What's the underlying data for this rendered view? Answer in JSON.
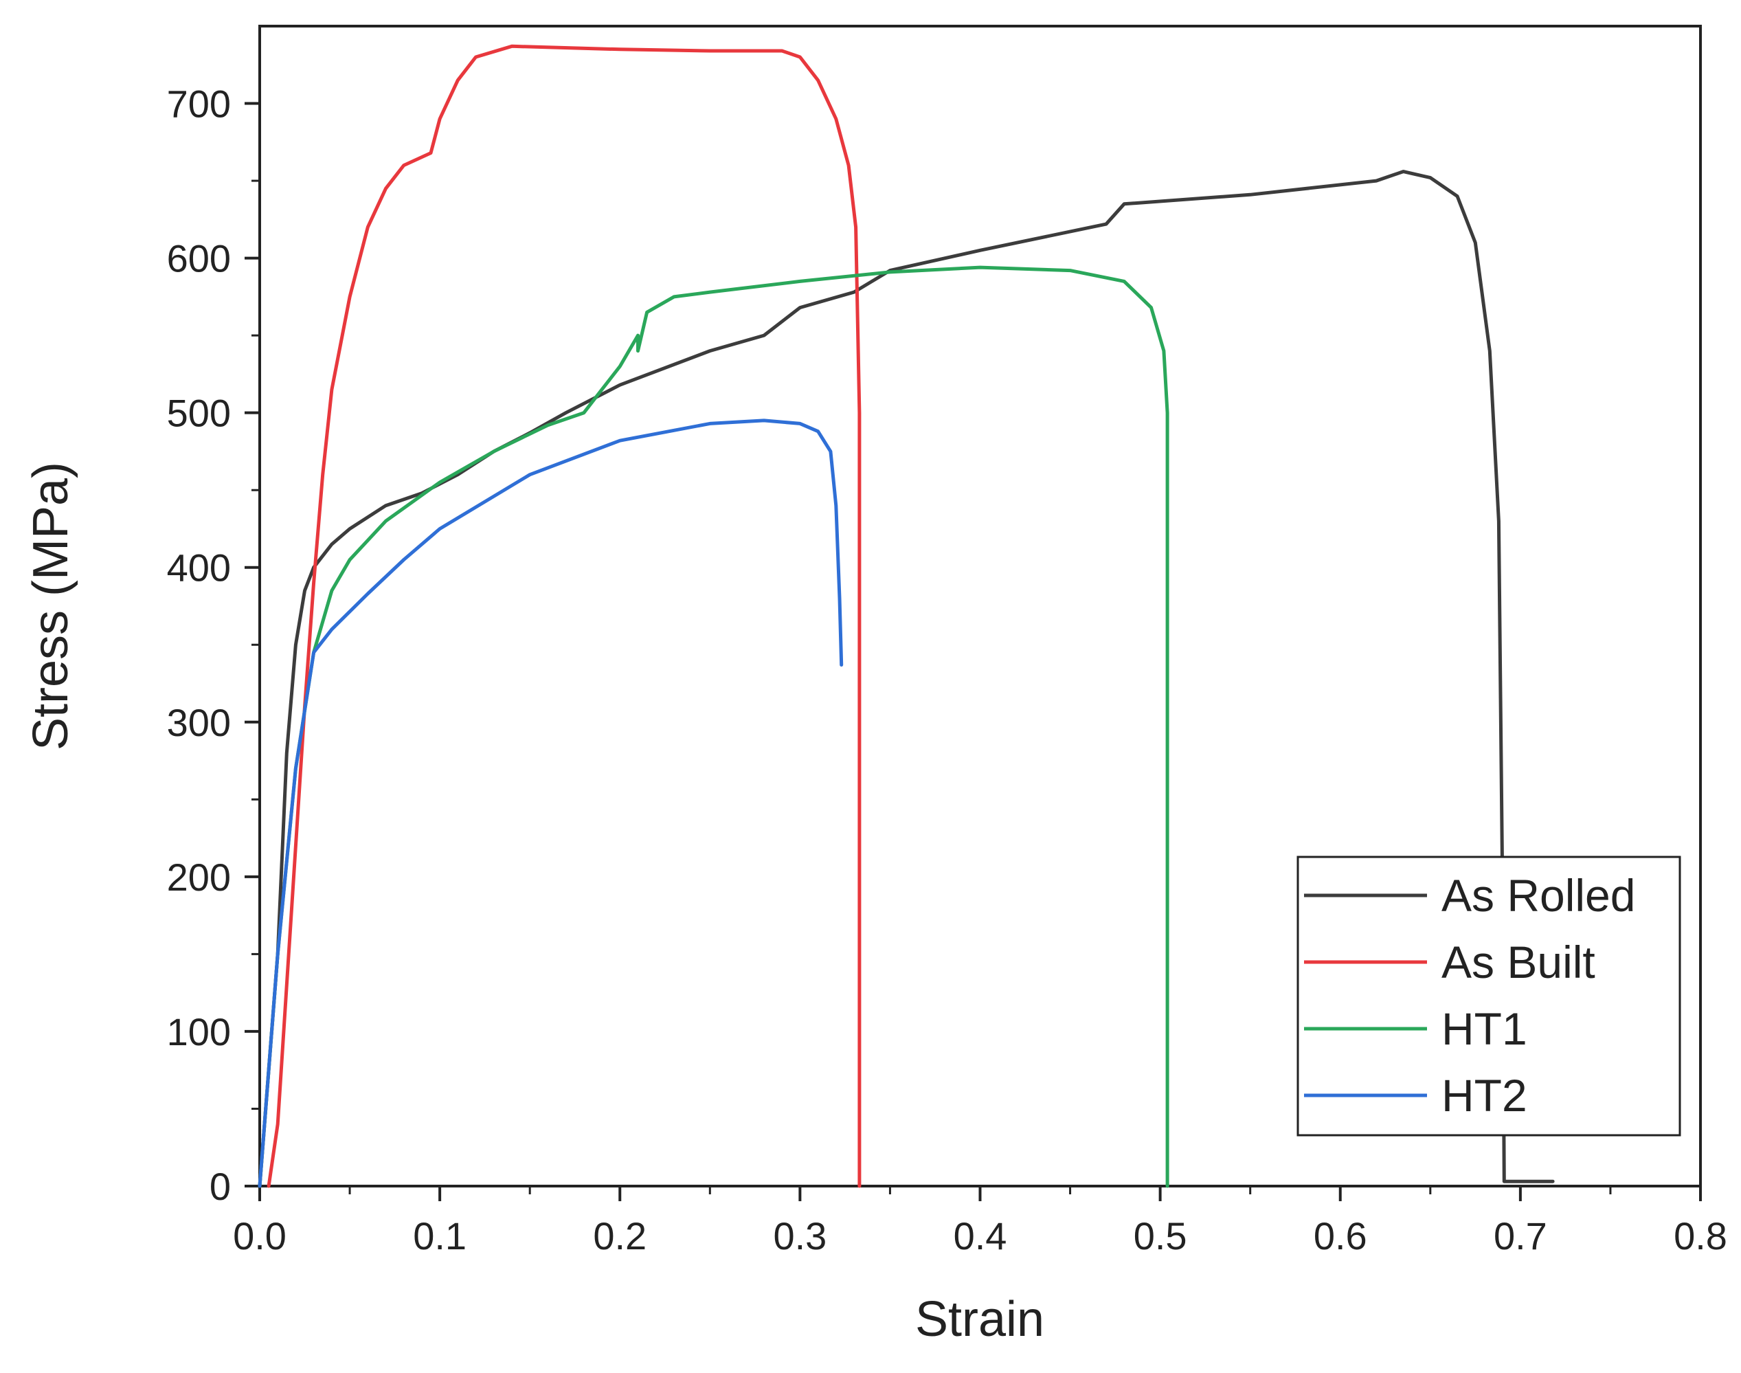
{
  "chart_data": {
    "type": "line",
    "xlabel": "Strain",
    "ylabel": "Stress (MPa)",
    "xlim": [
      0.0,
      0.8
    ],
    "ylim": [
      0,
      750
    ],
    "xticks": [
      "0.0",
      "0.1",
      "0.2",
      "0.3",
      "0.4",
      "0.5",
      "0.6",
      "0.7",
      "0.8"
    ],
    "yticks": [
      "0",
      "100",
      "200",
      "300",
      "400",
      "500",
      "600",
      "700"
    ],
    "grid": false,
    "legend_position": "bottom-right",
    "series": [
      {
        "name": "As Rolled",
        "color": "#3c3c3c",
        "points": [
          [
            0.0,
            0
          ],
          [
            0.01,
            150
          ],
          [
            0.015,
            280
          ],
          [
            0.02,
            350
          ],
          [
            0.025,
            385
          ],
          [
            0.03,
            400
          ],
          [
            0.04,
            415
          ],
          [
            0.05,
            425
          ],
          [
            0.07,
            440
          ],
          [
            0.09,
            448
          ],
          [
            0.11,
            460
          ],
          [
            0.13,
            475
          ],
          [
            0.15,
            487
          ],
          [
            0.17,
            500
          ],
          [
            0.2,
            518
          ],
          [
            0.25,
            540
          ],
          [
            0.28,
            550
          ],
          [
            0.3,
            568
          ],
          [
            0.33,
            578
          ],
          [
            0.35,
            592
          ],
          [
            0.4,
            605
          ],
          [
            0.47,
            622
          ],
          [
            0.48,
            635
          ],
          [
            0.55,
            641
          ],
          [
            0.62,
            650
          ],
          [
            0.635,
            656
          ],
          [
            0.65,
            652
          ],
          [
            0.665,
            640
          ],
          [
            0.675,
            610
          ],
          [
            0.683,
            540
          ],
          [
            0.688,
            430
          ],
          [
            0.69,
            200
          ],
          [
            0.691,
            3
          ],
          [
            0.7,
            3
          ],
          [
            0.718,
            3
          ]
        ]
      },
      {
        "name": "As Built",
        "color": "#e8383d",
        "points": [
          [
            0.005,
            0
          ],
          [
            0.01,
            40
          ],
          [
            0.015,
            130
          ],
          [
            0.02,
            220
          ],
          [
            0.025,
            310
          ],
          [
            0.03,
            390
          ],
          [
            0.035,
            460
          ],
          [
            0.04,
            515
          ],
          [
            0.05,
            575
          ],
          [
            0.06,
            620
          ],
          [
            0.07,
            645
          ],
          [
            0.08,
            660
          ],
          [
            0.095,
            668
          ],
          [
            0.1,
            690
          ],
          [
            0.11,
            715
          ],
          [
            0.12,
            730
          ],
          [
            0.14,
            737
          ],
          [
            0.2,
            735
          ],
          [
            0.25,
            734
          ],
          [
            0.29,
            734
          ],
          [
            0.3,
            730
          ],
          [
            0.31,
            715
          ],
          [
            0.32,
            690
          ],
          [
            0.327,
            660
          ],
          [
            0.331,
            620
          ],
          [
            0.333,
            500
          ],
          [
            0.333,
            0
          ]
        ]
      },
      {
        "name": "HT1",
        "color": "#2aa75a",
        "points": [
          [
            0.0,
            0
          ],
          [
            0.01,
            150
          ],
          [
            0.02,
            270
          ],
          [
            0.03,
            345
          ],
          [
            0.04,
            385
          ],
          [
            0.05,
            405
          ],
          [
            0.07,
            430
          ],
          [
            0.1,
            455
          ],
          [
            0.13,
            475
          ],
          [
            0.16,
            492
          ],
          [
            0.18,
            500
          ],
          [
            0.19,
            515
          ],
          [
            0.2,
            530
          ],
          [
            0.21,
            550
          ],
          [
            0.21,
            540
          ],
          [
            0.215,
            565
          ],
          [
            0.23,
            575
          ],
          [
            0.25,
            578
          ],
          [
            0.3,
            585
          ],
          [
            0.35,
            591
          ],
          [
            0.4,
            594
          ],
          [
            0.45,
            592
          ],
          [
            0.48,
            585
          ],
          [
            0.495,
            568
          ],
          [
            0.502,
            540
          ],
          [
            0.504,
            500
          ],
          [
            0.504,
            0
          ]
        ]
      },
      {
        "name": "HT2",
        "color": "#2f6fd6",
        "points": [
          [
            0.0,
            0
          ],
          [
            0.01,
            150
          ],
          [
            0.02,
            270
          ],
          [
            0.03,
            345
          ],
          [
            0.04,
            360
          ],
          [
            0.06,
            383
          ],
          [
            0.08,
            405
          ],
          [
            0.1,
            425
          ],
          [
            0.15,
            460
          ],
          [
            0.2,
            482
          ],
          [
            0.25,
            493
          ],
          [
            0.28,
            495
          ],
          [
            0.3,
            493
          ],
          [
            0.31,
            488
          ],
          [
            0.317,
            475
          ],
          [
            0.32,
            440
          ],
          [
            0.322,
            380
          ],
          [
            0.323,
            337
          ]
        ]
      }
    ]
  }
}
